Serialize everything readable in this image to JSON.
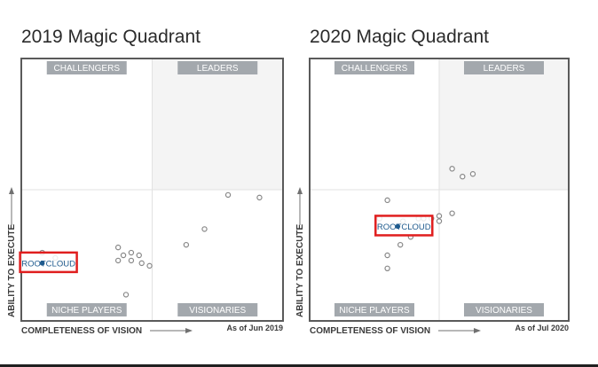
{
  "chart_data": [
    {
      "type": "scatter",
      "title": "2019 Magic Quadrant",
      "xlabel": "COMPLETENESS OF VISION",
      "ylabel": "ABILITY TO EXECUTE",
      "as_of": "As of Jun 2019",
      "quadrants": {
        "top_left": "CHALLENGERS",
        "top_right": "LEADERS",
        "bottom_left": "NICHE PLAYERS",
        "bottom_right": "VISIONARIES"
      },
      "xlim": [
        0,
        1
      ],
      "ylim": [
        0,
        1
      ],
      "grid": false,
      "colors": {
        "frame": "#5a5a5a",
        "marker": "#888888",
        "highlight_box": "#e01e1e",
        "highlight_point": "#1f5b8e",
        "quad_label_bg": "#a3a8ad",
        "top_right_fill": "#f4f4f4",
        "divider": "#e2e2e2"
      },
      "highlight": {
        "label": "ROOTCLOUD",
        "x": 0.08,
        "y": 0.22
      },
      "points": [
        {
          "x": 0.13,
          "y": 0.24
        },
        {
          "x": 0.16,
          "y": 0.22
        },
        {
          "x": 0.08,
          "y": 0.26
        },
        {
          "x": 0.37,
          "y": 0.28
        },
        {
          "x": 0.39,
          "y": 0.25
        },
        {
          "x": 0.42,
          "y": 0.26
        },
        {
          "x": 0.45,
          "y": 0.25
        },
        {
          "x": 0.42,
          "y": 0.23
        },
        {
          "x": 0.46,
          "y": 0.22
        },
        {
          "x": 0.37,
          "y": 0.23
        },
        {
          "x": 0.49,
          "y": 0.21
        },
        {
          "x": 0.63,
          "y": 0.29
        },
        {
          "x": 0.7,
          "y": 0.35
        },
        {
          "x": 0.4,
          "y": 0.1
        },
        {
          "x": 0.79,
          "y": 0.48
        },
        {
          "x": 0.91,
          "y": 0.47
        }
      ]
    },
    {
      "type": "scatter",
      "title": "2020 Magic Quadrant",
      "xlabel": "COMPLETENESS OF VISION",
      "ylabel": "ABILITY TO EXECUTE",
      "as_of": "As of Jul 2020",
      "quadrants": {
        "top_left": "CHALLENGERS",
        "top_right": "LEADERS",
        "bottom_left": "NICHE PLAYERS",
        "bottom_right": "VISIONARIES"
      },
      "xlim": [
        0,
        1
      ],
      "ylim": [
        0,
        1
      ],
      "grid": false,
      "colors": {
        "frame": "#5a5a5a",
        "marker": "#888888",
        "highlight_box": "#e01e1e",
        "highlight_point": "#1f5b8e",
        "quad_label_bg": "#a3a8ad",
        "top_right_fill": "#f4f4f4",
        "divider": "#e2e2e2"
      },
      "highlight": {
        "label": "ROOTCLOUD",
        "x": 0.34,
        "y": 0.36
      },
      "points": [
        {
          "x": 0.3,
          "y": 0.46
        },
        {
          "x": 0.27,
          "y": 0.39
        },
        {
          "x": 0.36,
          "y": 0.38
        },
        {
          "x": 0.39,
          "y": 0.36
        },
        {
          "x": 0.42,
          "y": 0.39
        },
        {
          "x": 0.44,
          "y": 0.39
        },
        {
          "x": 0.47,
          "y": 0.39
        },
        {
          "x": 0.5,
          "y": 0.4
        },
        {
          "x": 0.5,
          "y": 0.38
        },
        {
          "x": 0.55,
          "y": 0.41
        },
        {
          "x": 0.39,
          "y": 0.32
        },
        {
          "x": 0.35,
          "y": 0.29
        },
        {
          "x": 0.3,
          "y": 0.25
        },
        {
          "x": 0.3,
          "y": 0.2
        },
        {
          "x": 0.55,
          "y": 0.58
        },
        {
          "x": 0.59,
          "y": 0.55
        },
        {
          "x": 0.63,
          "y": 0.56
        }
      ]
    }
  ]
}
